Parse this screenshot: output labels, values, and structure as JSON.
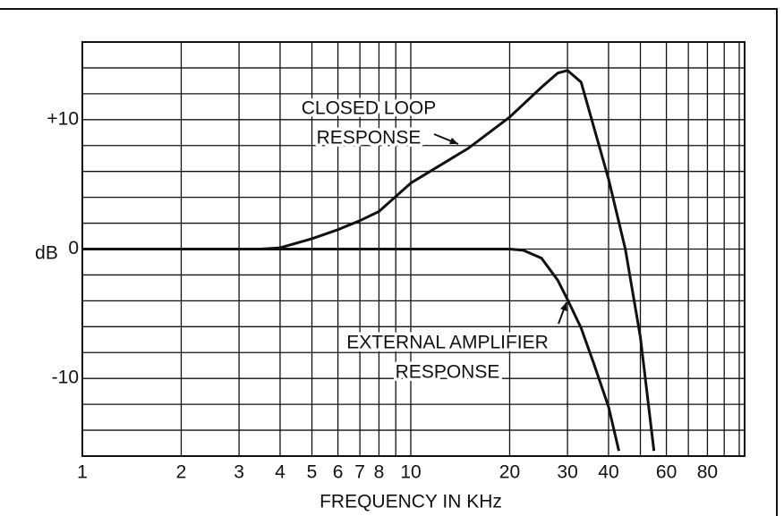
{
  "chart_data": {
    "type": "line",
    "x_label": "FREQUENCY IN KHz",
    "y_label": "dB",
    "xscale": "log",
    "xlim": [
      1,
      100
    ],
    "ylim": [
      -16,
      16
    ],
    "xticks": [
      1,
      2,
      3,
      4,
      5,
      6,
      7,
      8,
      10,
      20,
      30,
      40,
      60,
      80
    ],
    "xgrid": [
      1,
      2,
      3,
      4,
      5,
      6,
      7,
      8,
      9,
      10,
      20,
      30,
      40,
      50,
      60,
      70,
      80,
      90,
      100
    ],
    "yticks": [
      {
        "value": 10,
        "label": "+10"
      },
      0,
      -10
    ],
    "ygrid": [
      -14,
      -12,
      -10,
      -8,
      -6,
      -4,
      -2,
      0,
      2,
      4,
      6,
      8,
      10,
      12,
      14
    ],
    "grid": true,
    "series": [
      {
        "color": "#111111",
        "x": [
          1,
          3.5,
          4,
          5,
          6,
          7,
          8,
          10,
          15,
          20,
          25,
          28,
          30,
          33,
          40,
          45,
          50,
          55
        ],
        "values": [
          0,
          0,
          0.1,
          0.8,
          1.5,
          2.2,
          2.9,
          5.1,
          7.8,
          10.2,
          12.5,
          13.6,
          13.8,
          12.9,
          5.4,
          0,
          -6.8,
          -15.6
        ]
      },
      {
        "color": "#111111",
        "x": [
          1,
          20,
          22,
          25,
          28,
          30,
          33,
          36,
          40,
          43
        ],
        "values": [
          0,
          0,
          -0.1,
          -0.7,
          -2.4,
          -3.9,
          -6.1,
          -8.8,
          -12.2,
          -15.6
        ]
      }
    ],
    "annotations": [
      {
        "lines": [
          "CLOSED LOOP",
          "RESPONSE"
        ]
      },
      {
        "lines": [
          "EXTERNAL AMPLIFIER",
          "RESPONSE"
        ]
      }
    ]
  }
}
